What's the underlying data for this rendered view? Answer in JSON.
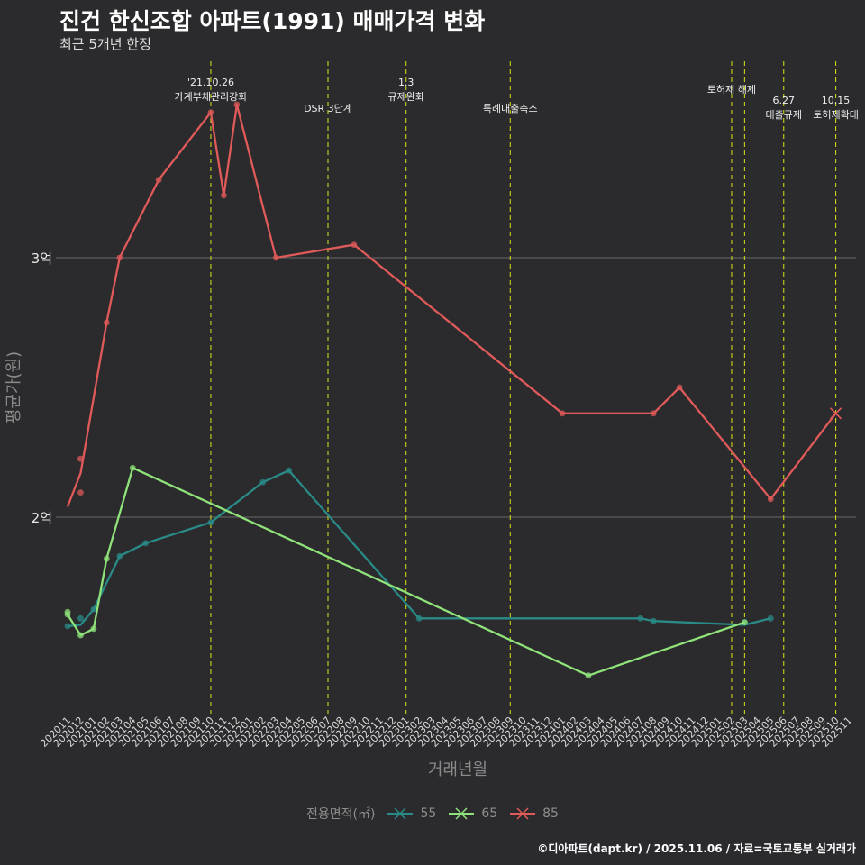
{
  "title": "진건 한신조합 아파트(1991) 매매가격 변화",
  "subtitle": "최근 5개년 한정",
  "caption": "©디아파트(dapt.kr) / 2025.11.06 / 자료=국토교통부 실거래가",
  "legend": {
    "title": "전용면적(㎡)",
    "items": [
      {
        "label": "55",
        "color": "#2a8a87"
      },
      {
        "label": "65",
        "color": "#8fe37a"
      },
      {
        "label": "85",
        "color": "#e05a5a"
      }
    ]
  },
  "chart_data": {
    "type": "line",
    "xlabel": "거래년월",
    "ylabel": "평균가(원)",
    "ylim_won": [
      130000000,
      380000000
    ],
    "yticks": [
      {
        "value": 200000000,
        "label": "2억"
      },
      {
        "value": 300000000,
        "label": "3억"
      }
    ],
    "x_ticks": [
      "202011",
      "202012",
      "202101",
      "202102",
      "202103",
      "202104",
      "202105",
      "202106",
      "202107",
      "202108",
      "202109",
      "202110",
      "202111",
      "202112",
      "202201",
      "202202",
      "202203",
      "202204",
      "202205",
      "202206",
      "202207",
      "202208",
      "202209",
      "202210",
      "202211",
      "202212",
      "202301",
      "202302",
      "202303",
      "202304",
      "202305",
      "202306",
      "202307",
      "202308",
      "202309",
      "202310",
      "202311",
      "202312",
      "202401",
      "202402",
      "202403",
      "202404",
      "202405",
      "202406",
      "202407",
      "202408",
      "202409",
      "202410",
      "202411",
      "202412",
      "202501",
      "202502",
      "202503",
      "202504",
      "202505",
      "202506",
      "202507",
      "202508",
      "202509",
      "202510",
      "202511"
    ],
    "events": [
      {
        "x": "202110",
        "labels": [
          "'21.10.26",
          "가계부채관리강화"
        ],
        "row": "top"
      },
      {
        "x": "202207",
        "labels": [
          "DSR 3단계"
        ],
        "row": "low"
      },
      {
        "x": "202301",
        "labels": [
          "1.3",
          "규제완화"
        ],
        "row": "top"
      },
      {
        "x": "202309",
        "labels": [
          "특례대출축소"
        ],
        "row": "low"
      },
      {
        "x": "202502",
        "labels": [
          "토허제 해제"
        ],
        "row": "mid"
      },
      {
        "x": "202503",
        "labels": [],
        "row": "mid"
      },
      {
        "x": "202506",
        "labels": [
          "6.27",
          "대출규제"
        ],
        "row": "lowpair"
      },
      {
        "x": "202510",
        "labels": [
          "10.15",
          "토허제확대"
        ],
        "row": "lowpair"
      }
    ],
    "series": [
      {
        "name": "55",
        "color": "#2a8a87",
        "line": [
          [
            "202011",
            158000000
          ],
          [
            "202012",
            158500000
          ],
          [
            "202101",
            164500000
          ],
          [
            "202103",
            185000000
          ],
          [
            "202105",
            190000000
          ],
          [
            "202110",
            198000000
          ],
          [
            "202202",
            213500000
          ],
          [
            "202204",
            218000000
          ],
          [
            "202302",
            161000000
          ],
          [
            "202407",
            161000000
          ],
          [
            "202408",
            160000000
          ],
          [
            "202503",
            158500000
          ],
          [
            "202505",
            161000000
          ]
        ],
        "points": [
          [
            "202011",
            158000000
          ],
          [
            "202012",
            161000000
          ],
          [
            "202101",
            164500000
          ],
          [
            "202103",
            185000000
          ],
          [
            "202105",
            190000000
          ],
          [
            "202110",
            198000000
          ],
          [
            "202202",
            213500000
          ],
          [
            "202204",
            218000000
          ],
          [
            "202302",
            161000000
          ],
          [
            "202407",
            161000000
          ],
          [
            "202408",
            160000000
          ],
          [
            "202503",
            159500000
          ],
          [
            "202505",
            161000000
          ]
        ]
      },
      {
        "name": "65",
        "color": "#8fe37a",
        "line": [
          [
            "202011",
            162500000
          ],
          [
            "202012",
            154500000
          ],
          [
            "202101",
            157000000
          ],
          [
            "202102",
            184000000
          ],
          [
            "202104",
            219000000
          ],
          [
            "202403",
            139000000
          ],
          [
            "202503",
            159500000
          ]
        ],
        "points": [
          [
            "202011",
            163500000
          ],
          [
            "202011",
            162500000
          ],
          [
            "202012",
            154500000
          ],
          [
            "202101",
            157000000
          ],
          [
            "202102",
            184000000
          ],
          [
            "202104",
            219000000
          ],
          [
            "202403",
            139000000
          ],
          [
            "202503",
            159500000
          ]
        ]
      },
      {
        "name": "85",
        "color": "#e05a5a",
        "line": [
          [
            "202011",
            204000000
          ],
          [
            "202012",
            217000000
          ],
          [
            "202102",
            275000000
          ],
          [
            "202103",
            300000000
          ],
          [
            "202106",
            330000000
          ],
          [
            "202110",
            356000000
          ],
          [
            "202111",
            324000000
          ],
          [
            "202112",
            359000000
          ],
          [
            "202203",
            300000000
          ],
          [
            "202209",
            305000000
          ],
          [
            "202401",
            240000000
          ],
          [
            "202408",
            240000000
          ],
          [
            "202410",
            250000000
          ],
          [
            "202505",
            207000000
          ],
          [
            "202510",
            240000000
          ]
        ],
        "points": [
          [
            "202012",
            222500000
          ],
          [
            "202012",
            209500000
          ],
          [
            "202102",
            275000000
          ],
          [
            "202103",
            300000000
          ],
          [
            "202106",
            330000000
          ],
          [
            "202110",
            356000000
          ],
          [
            "202111",
            324000000
          ],
          [
            "202112",
            359000000
          ],
          [
            "202203",
            300000000
          ],
          [
            "202209",
            305000000
          ],
          [
            "202401",
            240000000
          ],
          [
            "202408",
            240000000
          ],
          [
            "202410",
            250000000
          ],
          [
            "202505",
            207000000
          ]
        ],
        "crosses": [
          [
            "202510",
            240000000
          ]
        ]
      }
    ]
  }
}
